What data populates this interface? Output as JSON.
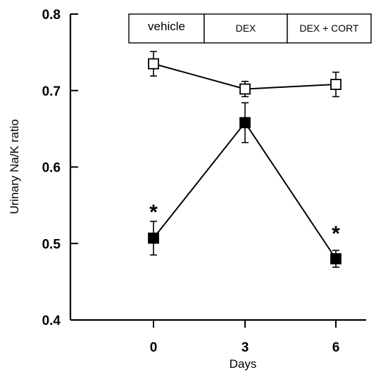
{
  "chart_data": {
    "type": "line",
    "xlabel": "Days",
    "ylabel": "Urinary Na/K ratio",
    "ylim": [
      0.4,
      0.8
    ],
    "yticks": [
      "0.4",
      "0.5",
      "0.6",
      "0.7",
      "0.8"
    ],
    "x": [
      0,
      3,
      6
    ],
    "xtick_labels": [
      "0",
      "3",
      "6"
    ],
    "series": [
      {
        "marker": "open-square",
        "fill": "#ffffff",
        "values": [
          0.735,
          0.702,
          0.708
        ],
        "errors": [
          0.016,
          0.01,
          0.016
        ]
      },
      {
        "marker": "filled-square",
        "fill": "#000000",
        "values": [
          0.507,
          0.658,
          0.48
        ],
        "errors": [
          0.022,
          0.026,
          0.011
        ]
      }
    ],
    "annotations": [
      {
        "text": "*",
        "x": 0,
        "y": 0.545
      },
      {
        "text": "*",
        "x": 6,
        "y": 0.517
      }
    ],
    "phases": [
      "vehicle",
      "DEX",
      "DEX + CORT"
    ],
    "grid": false
  }
}
